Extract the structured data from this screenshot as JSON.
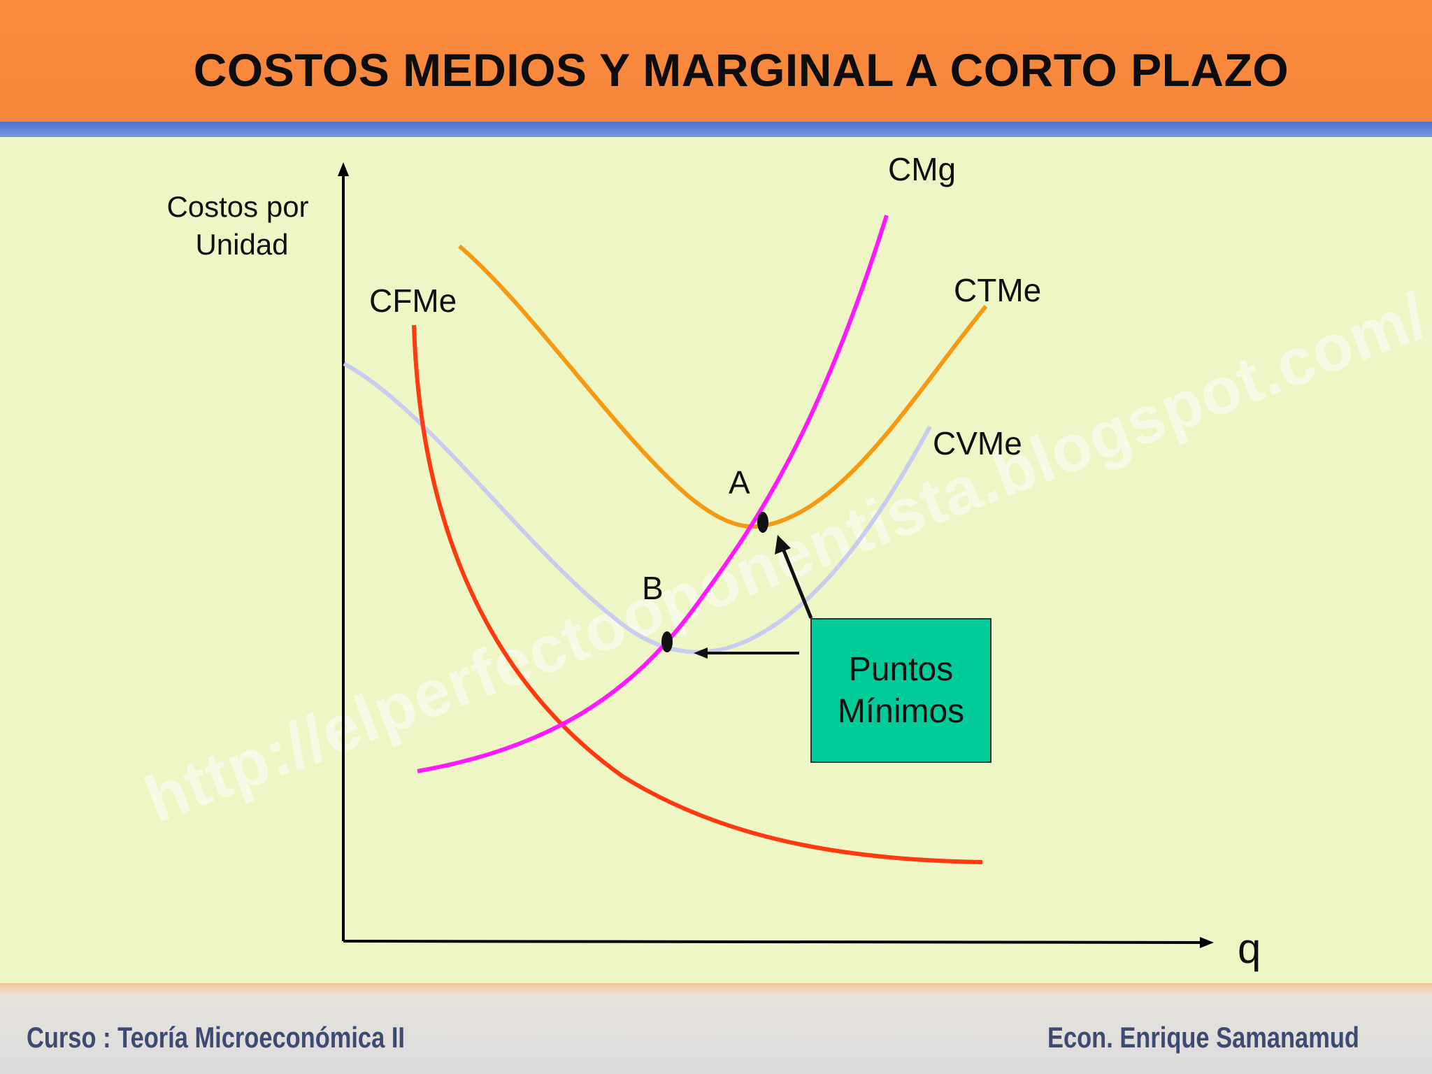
{
  "title": "COSTOS MEDIOS Y MARGINAL A CORTO PLAZO",
  "y_axis_label": [
    "Costos por",
    "Unidad"
  ],
  "x_axis_label": "q",
  "curves": {
    "cmg": "CMg",
    "ctme": "CTMe",
    "cvme": "CVMe",
    "cfme": "CFMe"
  },
  "points": {
    "a": "A",
    "b": "B"
  },
  "callout": [
    "Puntos",
    "Mínimos"
  ],
  "watermark": "http://elperfectooponentista.blogspot.com/",
  "footer": {
    "left": "Curso : Teoría Microeconómica II",
    "right": "Econ. Enrique Samanamud"
  },
  "colors": {
    "title_bar": "#f5853a",
    "background": "#eef6c6",
    "cmg": "#ff19ff",
    "ctme": "#f39a12",
    "cvme": "#c8cdf0",
    "cfme": "#ff3a10",
    "callout_box": "#00cc99",
    "footer_text": "#3d4b72"
  }
}
